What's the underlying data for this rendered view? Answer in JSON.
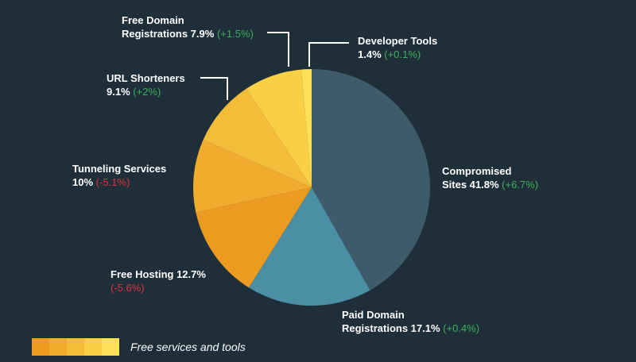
{
  "chart_data": {
    "type": "pie",
    "slices": [
      {
        "label_line1": "Compromised",
        "label_line2": "Sites 41.8%",
        "name": "Compromised Sites",
        "value": 41.8,
        "change": "(+6.7%)",
        "change_sign": "positive",
        "color": "#3f5a69"
      },
      {
        "label_line1": "Paid Domain",
        "label_line2": "Registrations 17.1%",
        "name": "Paid Domain Registrations",
        "value": 17.1,
        "change": "(+0.4%)",
        "change_sign": "positive",
        "color": "#4a8fa3"
      },
      {
        "label_line1": "Free Hosting 12.7%",
        "label_line2": "",
        "name": "Free Hosting",
        "value": 12.7,
        "change": "(-5.6%)",
        "change_sign": "negative",
        "color": "#ec9a20"
      },
      {
        "label_line1": "Tunneling Services",
        "label_line2": "10%",
        "name": "Tunneling Services",
        "value": 10,
        "change": "(-5.1%)",
        "change_sign": "negative",
        "color": "#f1ac2d"
      },
      {
        "label_line1": "URL Shorteners",
        "label_line2": "9.1%",
        "name": "URL Shorteners",
        "value": 9.1,
        "change": "(+2%)",
        "change_sign": "positive",
        "color": "#f4bd39"
      },
      {
        "label_line1": "Free Domain",
        "label_line2": "Registrations 7.9%",
        "name": "Free Domain Registrations",
        "value": 7.9,
        "change": "(+1.5%)",
        "change_sign": "positive",
        "color": "#f8cf45"
      },
      {
        "label_line1": "Developer Tools",
        "label_line2": "1.4%",
        "name": "Developer Tools",
        "value": 1.4,
        "change": "(+0.1%)",
        "change_sign": "positive",
        "color": "#fbe058"
      }
    ],
    "legend": {
      "label": "Free services and tools",
      "colors": [
        "#ec9a20",
        "#f1ac2d",
        "#f4bd39",
        "#f8cf45",
        "#fbe058"
      ]
    }
  }
}
